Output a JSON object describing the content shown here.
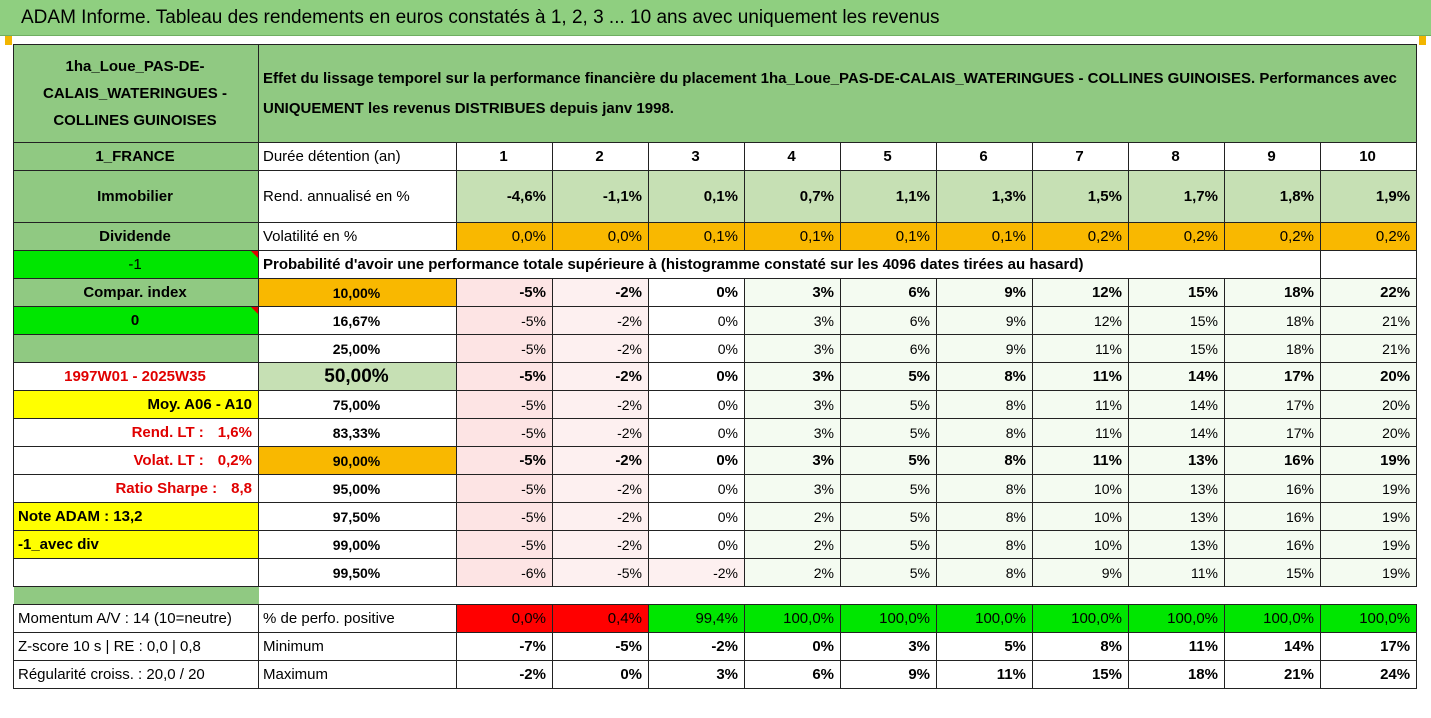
{
  "banner": "ADAM Informe. Tableau des rendements en euros constatés à 1, 2, 3 ... 10 ans avec uniquement les revenus",
  "header": {
    "name": "1ha_Loue_PAS-DE-CALAIS_WATERINGUES - COLLINES GUINOISES",
    "description": "Effet du lissage temporel sur la performance financière du placement 1ha_Loue_PAS-DE-CALAIS_WATERINGUES - COLLINES GUINOISES. Performances avec UNIQUEMENT les revenus DISTRIBUES depuis janv 1998."
  },
  "left": {
    "country": "1_FRANCE",
    "category": "Immobilier",
    "dividend": "Dividende",
    "minus_one": "-1",
    "compar_index": "Compar. index",
    "zero": "0",
    "period": "1997W01 - 2025W35",
    "moy": "Moy. A06 - A10",
    "rend_lt_label": "Rend. LT :",
    "rend_lt_value": "1,6%",
    "volat_lt_label": "Volat. LT :",
    "volat_lt_value": "0,2%",
    "sharpe_label": "Ratio Sharpe :",
    "sharpe_value": "8,8",
    "note_adam": "Note ADAM : 13,2",
    "avec_div": "-1_avec div"
  },
  "duration_label": "Durée détention (an)",
  "years": [
    "1",
    "2",
    "3",
    "4",
    "5",
    "6",
    "7",
    "8",
    "9",
    "10"
  ],
  "rend": {
    "label": "Rend. annualisé en %",
    "values": [
      "-4,6%",
      "-1,1%",
      "0,1%",
      "0,7%",
      "1,1%",
      "1,3%",
      "1,5%",
      "1,7%",
      "1,8%",
      "1,9%"
    ]
  },
  "volat": {
    "label": "Volatilité en %",
    "values": [
      "0,0%",
      "0,0%",
      "0,1%",
      "0,1%",
      "0,1%",
      "0,1%",
      "0,2%",
      "0,2%",
      "0,2%",
      "0,2%"
    ]
  },
  "proba_label": "Probabilité d'avoir une performance totale supérieure à (histogramme constaté sur les 4096 dates tirées au hasard)",
  "percentiles": [
    {
      "p": "10,00%",
      "v": [
        "-5%",
        "-2%",
        "0%",
        "3%",
        "6%",
        "9%",
        "12%",
        "15%",
        "18%",
        "22%"
      ]
    },
    {
      "p": "16,67%",
      "v": [
        "-5%",
        "-2%",
        "0%",
        "3%",
        "6%",
        "9%",
        "12%",
        "15%",
        "18%",
        "21%"
      ]
    },
    {
      "p": "25,00%",
      "v": [
        "-5%",
        "-2%",
        "0%",
        "3%",
        "6%",
        "9%",
        "11%",
        "15%",
        "18%",
        "21%"
      ]
    },
    {
      "p": "50,00%",
      "v": [
        "-5%",
        "-2%",
        "0%",
        "3%",
        "5%",
        "8%",
        "11%",
        "14%",
        "17%",
        "20%"
      ]
    },
    {
      "p": "75,00%",
      "v": [
        "-5%",
        "-2%",
        "0%",
        "3%",
        "5%",
        "8%",
        "11%",
        "14%",
        "17%",
        "20%"
      ]
    },
    {
      "p": "83,33%",
      "v": [
        "-5%",
        "-2%",
        "0%",
        "3%",
        "5%",
        "8%",
        "11%",
        "14%",
        "17%",
        "20%"
      ]
    },
    {
      "p": "90,00%",
      "v": [
        "-5%",
        "-2%",
        "0%",
        "3%",
        "5%",
        "8%",
        "11%",
        "13%",
        "16%",
        "19%"
      ]
    },
    {
      "p": "95,00%",
      "v": [
        "-5%",
        "-2%",
        "0%",
        "3%",
        "5%",
        "8%",
        "10%",
        "13%",
        "16%",
        "19%"
      ]
    },
    {
      "p": "97,50%",
      "v": [
        "-5%",
        "-2%",
        "0%",
        "2%",
        "5%",
        "8%",
        "10%",
        "13%",
        "16%",
        "19%"
      ]
    },
    {
      "p": "99,00%",
      "v": [
        "-5%",
        "-2%",
        "0%",
        "2%",
        "5%",
        "8%",
        "10%",
        "13%",
        "16%",
        "19%"
      ]
    },
    {
      "p": "99,50%",
      "v": [
        "-6%",
        "-5%",
        "-2%",
        "2%",
        "5%",
        "8%",
        "9%",
        "11%",
        "15%",
        "19%"
      ]
    }
  ],
  "footer": {
    "momentum": "Momentum A/V : 14 (10=neutre)",
    "zscore": "Z-score 10 s  | RE : 0,0  | 0,8",
    "regularite": "Régularité croiss. : 20,0 / 20",
    "positive": {
      "label": "% de perfo. positive",
      "values": [
        "0,0%",
        "0,4%",
        "99,4%",
        "100,0%",
        "100,0%",
        "100,0%",
        "100,0%",
        "100,0%",
        "100,0%",
        "100,0%"
      ]
    },
    "minimum": {
      "label": "Minimum",
      "values": [
        "-7%",
        "-5%",
        "-2%",
        "0%",
        "3%",
        "5%",
        "8%",
        "11%",
        "14%",
        "17%"
      ]
    },
    "maximum": {
      "label": "Maximum",
      "values": [
        "-2%",
        "0%",
        "3%",
        "6%",
        "9%",
        "11%",
        "15%",
        "18%",
        "21%",
        "24%"
      ]
    }
  },
  "colors": {
    "green_header": "#90c982",
    "light_green": "#c6e0b4",
    "orange": "#f9b800",
    "yellow": "#ffff00",
    "bright_green": "#00e600",
    "red": "#ff0000"
  }
}
